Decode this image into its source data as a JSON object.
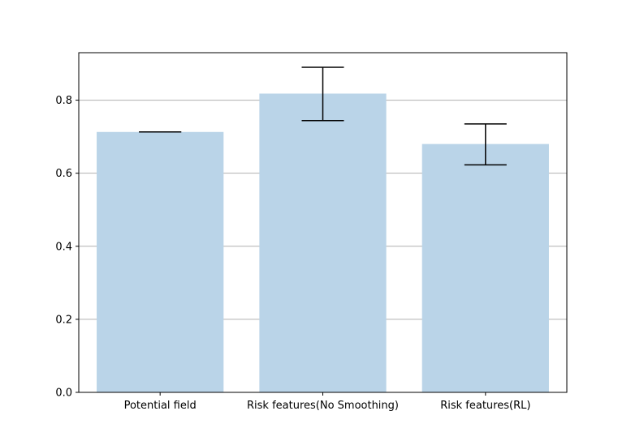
{
  "chart_data": {
    "type": "bar",
    "title": "",
    "xlabel": "",
    "ylabel": "",
    "categories": [
      "Potential field",
      "Risk features(No Smoothing)",
      "Risk features(RL)"
    ],
    "values": [
      0.713,
      0.818,
      0.68
    ],
    "error_bars": [
      {
        "low": 0.713,
        "high": 0.713
      },
      {
        "low": 0.744,
        "high": 0.89
      },
      {
        "low": 0.623,
        "high": 0.735
      }
    ],
    "ylim": [
      0.0,
      0.93
    ],
    "yticks": [
      0.0,
      0.2,
      0.4,
      0.6,
      0.8
    ],
    "ytick_labels": [
      "0.0",
      "0.2",
      "0.4",
      "0.6",
      "0.8"
    ],
    "grid": "horizontal",
    "legend": "none",
    "colors": {
      "bar": "#bad4e8",
      "error_bar": "#000000",
      "grid": "#b0b0b0",
      "axes": "#000000"
    }
  }
}
